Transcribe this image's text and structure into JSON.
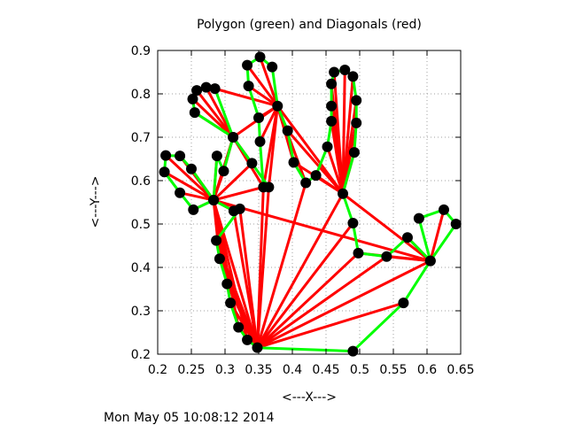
{
  "chart_data": {
    "type": "scatter",
    "title": "Polygon (green) and Diagonals (red)",
    "xlabel": "<---X--->",
    "ylabel": "<---Y--->",
    "timestamp": "Mon May 05 10:08:12 2014",
    "xlim": [
      0.2,
      0.65
    ],
    "ylim": [
      0.2,
      0.9
    ],
    "xticks": [
      "0.2",
      "0.25",
      "0.3",
      "0.35",
      "0.4",
      "0.45",
      "0.5",
      "0.55",
      "0.6",
      "0.65"
    ],
    "yticks": [
      "0.2",
      "0.3",
      "0.4",
      "0.5",
      "0.6",
      "0.7",
      "0.8",
      "0.9"
    ],
    "grid": true,
    "colors": {
      "polygon": "#00ff00",
      "diagonal": "#ff0000",
      "vertex": "#000000"
    },
    "vertices": [
      [
        0.348,
        0.215
      ],
      [
        0.49,
        0.207
      ],
      [
        0.565,
        0.318
      ],
      [
        0.605,
        0.415
      ],
      [
        0.643,
        0.5
      ],
      [
        0.625,
        0.533
      ],
      [
        0.588,
        0.513
      ],
      [
        0.605,
        0.415
      ],
      [
        0.571,
        0.469
      ],
      [
        0.54,
        0.425
      ],
      [
        0.498,
        0.433
      ],
      [
        0.49,
        0.502
      ],
      [
        0.475,
        0.57
      ],
      [
        0.492,
        0.665
      ],
      [
        0.495,
        0.733
      ],
      [
        0.495,
        0.785
      ],
      [
        0.49,
        0.84
      ],
      [
        0.478,
        0.855
      ],
      [
        0.462,
        0.85
      ],
      [
        0.458,
        0.823
      ],
      [
        0.458,
        0.772
      ],
      [
        0.458,
        0.737
      ],
      [
        0.452,
        0.678
      ],
      [
        0.435,
        0.612
      ],
      [
        0.42,
        0.595
      ],
      [
        0.402,
        0.642
      ],
      [
        0.393,
        0.715
      ],
      [
        0.378,
        0.772
      ],
      [
        0.37,
        0.862
      ],
      [
        0.352,
        0.885
      ],
      [
        0.333,
        0.866
      ],
      [
        0.335,
        0.818
      ],
      [
        0.35,
        0.745
      ],
      [
        0.352,
        0.69
      ],
      [
        0.357,
        0.585
      ],
      [
        0.365,
        0.585
      ],
      [
        0.34,
        0.64
      ],
      [
        0.312,
        0.7
      ],
      [
        0.285,
        0.812
      ],
      [
        0.272,
        0.815
      ],
      [
        0.258,
        0.808
      ],
      [
        0.252,
        0.788
      ],
      [
        0.255,
        0.757
      ],
      [
        0.312,
        0.7
      ],
      [
        0.298,
        0.622
      ],
      [
        0.288,
        0.657
      ],
      [
        0.283,
        0.555
      ],
      [
        0.25,
        0.627
      ],
      [
        0.233,
        0.657
      ],
      [
        0.212,
        0.658
      ],
      [
        0.21,
        0.62
      ],
      [
        0.233,
        0.572
      ],
      [
        0.253,
        0.533
      ],
      [
        0.283,
        0.555
      ],
      [
        0.313,
        0.53
      ],
      [
        0.322,
        0.535
      ],
      [
        0.287,
        0.462
      ],
      [
        0.292,
        0.42
      ],
      [
        0.303,
        0.362
      ],
      [
        0.308,
        0.318
      ],
      [
        0.32,
        0.262
      ],
      [
        0.333,
        0.233
      ]
    ],
    "diagonals": [
      [
        [
          0.348,
          0.215
        ],
        [
          0.565,
          0.318
        ]
      ],
      [
        [
          0.348,
          0.215
        ],
        [
          0.605,
          0.415
        ]
      ],
      [
        [
          0.348,
          0.215
        ],
        [
          0.54,
          0.425
        ]
      ],
      [
        [
          0.348,
          0.215
        ],
        [
          0.498,
          0.433
        ]
      ],
      [
        [
          0.348,
          0.215
        ],
        [
          0.49,
          0.502
        ]
      ],
      [
        [
          0.348,
          0.215
        ],
        [
          0.475,
          0.57
        ]
      ],
      [
        [
          0.348,
          0.215
        ],
        [
          0.42,
          0.595
        ]
      ],
      [
        [
          0.348,
          0.215
        ],
        [
          0.365,
          0.585
        ]
      ],
      [
        [
          0.348,
          0.215
        ],
        [
          0.357,
          0.585
        ]
      ],
      [
        [
          0.348,
          0.215
        ],
        [
          0.283,
          0.555
        ]
      ],
      [
        [
          0.348,
          0.215
        ],
        [
          0.313,
          0.53
        ]
      ],
      [
        [
          0.348,
          0.215
        ],
        [
          0.322,
          0.535
        ]
      ],
      [
        [
          0.348,
          0.215
        ],
        [
          0.287,
          0.462
        ]
      ],
      [
        [
          0.348,
          0.215
        ],
        [
          0.292,
          0.42
        ]
      ],
      [
        [
          0.348,
          0.215
        ],
        [
          0.303,
          0.362
        ]
      ],
      [
        [
          0.348,
          0.215
        ],
        [
          0.308,
          0.318
        ]
      ],
      [
        [
          0.348,
          0.215
        ],
        [
          0.32,
          0.262
        ]
      ],
      [
        [
          0.605,
          0.415
        ],
        [
          0.625,
          0.533
        ]
      ],
      [
        [
          0.605,
          0.415
        ],
        [
          0.571,
          0.469
        ]
      ],
      [
        [
          0.605,
          0.415
        ],
        [
          0.54,
          0.425
        ]
      ],
      [
        [
          0.605,
          0.415
        ],
        [
          0.498,
          0.433
        ]
      ],
      [
        [
          0.605,
          0.415
        ],
        [
          0.475,
          0.57
        ]
      ],
      [
        [
          0.605,
          0.415
        ],
        [
          0.283,
          0.555
        ]
      ],
      [
        [
          0.475,
          0.57
        ],
        [
          0.492,
          0.665
        ]
      ],
      [
        [
          0.475,
          0.57
        ],
        [
          0.495,
          0.733
        ]
      ],
      [
        [
          0.475,
          0.57
        ],
        [
          0.495,
          0.785
        ]
      ],
      [
        [
          0.475,
          0.57
        ],
        [
          0.49,
          0.84
        ]
      ],
      [
        [
          0.475,
          0.57
        ],
        [
          0.478,
          0.855
        ]
      ],
      [
        [
          0.475,
          0.57
        ],
        [
          0.462,
          0.85
        ]
      ],
      [
        [
          0.475,
          0.57
        ],
        [
          0.458,
          0.823
        ]
      ],
      [
        [
          0.475,
          0.57
        ],
        [
          0.458,
          0.772
        ]
      ],
      [
        [
          0.475,
          0.57
        ],
        [
          0.458,
          0.737
        ]
      ],
      [
        [
          0.475,
          0.57
        ],
        [
          0.452,
          0.678
        ]
      ],
      [
        [
          0.475,
          0.57
        ],
        [
          0.435,
          0.612
        ]
      ],
      [
        [
          0.475,
          0.57
        ],
        [
          0.378,
          0.772
        ]
      ],
      [
        [
          0.475,
          0.57
        ],
        [
          0.402,
          0.642
        ]
      ],
      [
        [
          0.475,
          0.57
        ],
        [
          0.393,
          0.715
        ]
      ],
      [
        [
          0.378,
          0.772
        ],
        [
          0.352,
          0.885
        ]
      ],
      [
        [
          0.378,
          0.772
        ],
        [
          0.333,
          0.866
        ]
      ],
      [
        [
          0.378,
          0.772
        ],
        [
          0.335,
          0.818
        ]
      ],
      [
        [
          0.378,
          0.772
        ],
        [
          0.35,
          0.745
        ]
      ],
      [
        [
          0.378,
          0.772
        ],
        [
          0.352,
          0.69
        ]
      ],
      [
        [
          0.378,
          0.772
        ],
        [
          0.357,
          0.585
        ]
      ],
      [
        [
          0.378,
          0.772
        ],
        [
          0.365,
          0.585
        ]
      ],
      [
        [
          0.378,
          0.772
        ],
        [
          0.402,
          0.642
        ]
      ],
      [
        [
          0.378,
          0.772
        ],
        [
          0.312,
          0.7
        ]
      ],
      [
        [
          0.378,
          0.772
        ],
        [
          0.285,
          0.812
        ]
      ],
      [
        [
          0.378,
          0.772
        ],
        [
          0.42,
          0.595
        ]
      ],
      [
        [
          0.312,
          0.7
        ],
        [
          0.272,
          0.815
        ]
      ],
      [
        [
          0.312,
          0.7
        ],
        [
          0.258,
          0.808
        ]
      ],
      [
        [
          0.312,
          0.7
        ],
        [
          0.252,
          0.788
        ]
      ],
      [
        [
          0.312,
          0.7
        ],
        [
          0.255,
          0.757
        ]
      ],
      [
        [
          0.312,
          0.7
        ],
        [
          0.34,
          0.64
        ]
      ],
      [
        [
          0.312,
          0.7
        ],
        [
          0.298,
          0.622
        ]
      ],
      [
        [
          0.312,
          0.7
        ],
        [
          0.283,
          0.555
        ]
      ],
      [
        [
          0.312,
          0.7
        ],
        [
          0.357,
          0.585
        ]
      ],
      [
        [
          0.283,
          0.555
        ],
        [
          0.288,
          0.657
        ]
      ],
      [
        [
          0.283,
          0.555
        ],
        [
          0.25,
          0.627
        ]
      ],
      [
        [
          0.283,
          0.555
        ],
        [
          0.233,
          0.657
        ]
      ],
      [
        [
          0.283,
          0.555
        ],
        [
          0.212,
          0.658
        ]
      ],
      [
        [
          0.283,
          0.555
        ],
        [
          0.21,
          0.62
        ]
      ],
      [
        [
          0.283,
          0.555
        ],
        [
          0.233,
          0.572
        ]
      ],
      [
        [
          0.283,
          0.555
        ],
        [
          0.253,
          0.533
        ]
      ],
      [
        [
          0.283,
          0.555
        ],
        [
          0.313,
          0.53
        ]
      ],
      [
        [
          0.283,
          0.555
        ],
        [
          0.322,
          0.535
        ]
      ],
      [
        [
          0.283,
          0.555
        ],
        [
          0.292,
          0.42
        ]
      ],
      [
        [
          0.283,
          0.555
        ],
        [
          0.303,
          0.362
        ]
      ],
      [
        [
          0.283,
          0.555
        ],
        [
          0.308,
          0.318
        ]
      ],
      [
        [
          0.283,
          0.555
        ],
        [
          0.32,
          0.262
        ]
      ],
      [
        [
          0.283,
          0.555
        ],
        [
          0.333,
          0.233
        ]
      ],
      [
        [
          0.283,
          0.555
        ],
        [
          0.298,
          0.622
        ]
      ],
      [
        [
          0.283,
          0.555
        ],
        [
          0.34,
          0.64
        ]
      ],
      [
        [
          0.283,
          0.555
        ],
        [
          0.357,
          0.585
        ]
      ]
    ]
  }
}
